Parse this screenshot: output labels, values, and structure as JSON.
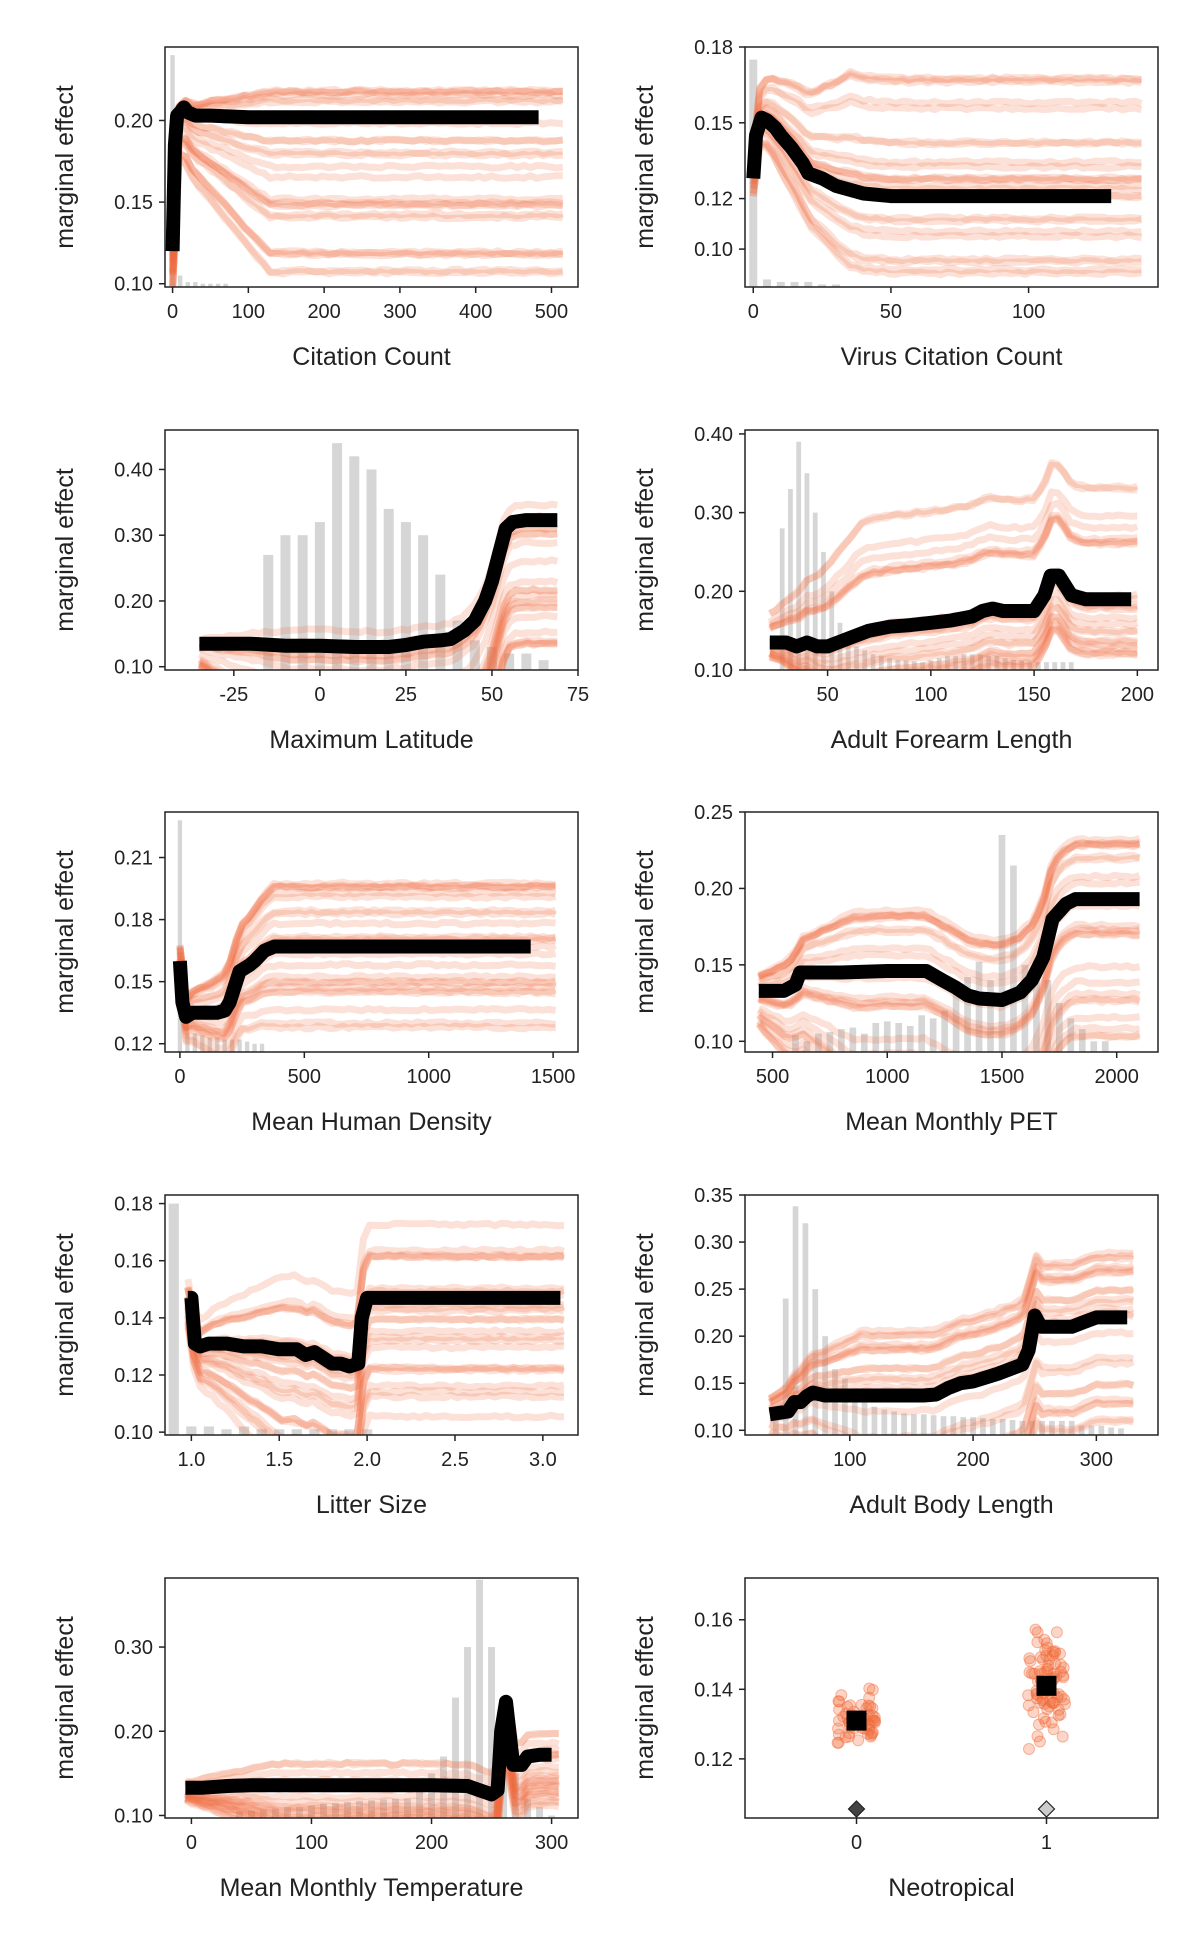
{
  "colors": {
    "ice": "#f26b3a",
    "pdp": "#000000",
    "hist": "#c8c8c8",
    "frame": "#222222"
  },
  "chart_data": [
    {
      "type": "line",
      "xlabel": "Citation Count",
      "ylabel": "marginal effect",
      "xlim": [
        -10,
        535
      ],
      "ylim": [
        0.098,
        0.245
      ],
      "xticks": [
        0,
        100,
        200,
        300,
        400,
        500
      ],
      "yticks": [
        0.1,
        0.15,
        0.2
      ],
      "ytick_labels": [
        "0.10",
        "0.15",
        "0.20"
      ],
      "pdp": {
        "x": [
          0,
          3,
          6,
          10,
          15,
          20,
          30,
          50,
          100,
          200,
          300,
          400,
          483
        ],
        "y": [
          0.12,
          0.185,
          0.203,
          0.205,
          0.208,
          0.205,
          0.203,
          0.203,
          0.202,
          0.202,
          0.202,
          0.202,
          0.202
        ]
      },
      "ice": {
        "x_end": 515,
        "ymin": 0.105,
        "ymax": 0.235
      },
      "hist": {
        "x": [
          0,
          10,
          20,
          30,
          40,
          50,
          60,
          70
        ],
        "y": [
          0.24,
          0.105,
          0.101,
          0.101,
          0.1,
          0.1,
          0.1,
          0.1
        ]
      }
    },
    {
      "type": "line",
      "xlabel": "Virus Citation Count",
      "ylabel": "marginal effect",
      "xlim": [
        -3,
        147
      ],
      "ylim": [
        0.085,
        0.18
      ],
      "xticks": [
        0,
        50,
        100
      ],
      "yticks": [
        0.1,
        0.12,
        0.15,
        0.18
      ],
      "ytick_labels": [
        "0.10",
        "0.12",
        "0.15",
        "0.18"
      ],
      "pdp": {
        "x": [
          0,
          1,
          3,
          5,
          8,
          10,
          14,
          18,
          20,
          25,
          30,
          40,
          50,
          60,
          80,
          100,
          130
        ],
        "y": [
          0.128,
          0.145,
          0.152,
          0.151,
          0.148,
          0.145,
          0.14,
          0.134,
          0.13,
          0.128,
          0.125,
          0.122,
          0.121,
          0.121,
          0.121,
          0.121,
          0.121
        ]
      },
      "ice": {
        "x_end": 141,
        "ymin": 0.088,
        "ymax": 0.168
      },
      "hist": {
        "x": [
          0,
          5,
          10,
          15,
          20,
          25,
          30
        ],
        "y": [
          0.175,
          0.088,
          0.087,
          0.087,
          0.087,
          0.086,
          0.086
        ]
      }
    },
    {
      "type": "line",
      "xlabel": "Maximum Latitude",
      "ylabel": "marginal effect",
      "xlim": [
        -45,
        75
      ],
      "ylim": [
        0.095,
        0.46
      ],
      "xticks": [
        -25,
        0,
        25,
        50,
        75
      ],
      "yticks": [
        0.1,
        0.2,
        0.3,
        0.4
      ],
      "ytick_labels": [
        "0.10",
        "0.20",
        "0.30",
        "0.40"
      ],
      "pdp": {
        "x": [
          -35,
          -20,
          -10,
          0,
          10,
          20,
          25,
          30,
          35,
          38,
          42,
          45,
          48,
          50,
          52,
          54,
          56,
          60,
          65,
          69
        ],
        "y": [
          0.135,
          0.135,
          0.132,
          0.132,
          0.13,
          0.13,
          0.133,
          0.138,
          0.14,
          0.142,
          0.155,
          0.17,
          0.2,
          0.23,
          0.27,
          0.31,
          0.32,
          0.323,
          0.323,
          0.323
        ]
      },
      "ice": {
        "x_end": 69,
        "ymin": 0.12,
        "ymax": 0.35
      },
      "hist": {
        "x": [
          -15,
          -10,
          -5,
          0,
          5,
          10,
          15,
          20,
          25,
          30,
          35,
          40,
          45,
          50,
          55,
          60,
          65
        ],
        "y": [
          0.27,
          0.3,
          0.3,
          0.32,
          0.44,
          0.42,
          0.4,
          0.34,
          0.32,
          0.3,
          0.24,
          0.17,
          0.14,
          0.13,
          0.12,
          0.12,
          0.11
        ]
      }
    },
    {
      "type": "line",
      "xlabel": "Adult Forearm Length",
      "ylabel": "marginal effect",
      "xlim": [
        10,
        210
      ],
      "ylim": [
        0.1,
        0.405
      ],
      "xticks": [
        50,
        100,
        150,
        200
      ],
      "yticks": [
        0.1,
        0.2,
        0.3,
        0.4
      ],
      "ytick_labels": [
        "0.10",
        "0.20",
        "0.30",
        "0.40"
      ],
      "pdp": {
        "x": [
          22,
          30,
          35,
          40,
          45,
          50,
          55,
          60,
          70,
          80,
          90,
          100,
          110,
          120,
          125,
          130,
          135,
          140,
          145,
          150,
          155,
          158,
          162,
          168,
          175,
          185,
          197
        ],
        "y": [
          0.135,
          0.135,
          0.13,
          0.135,
          0.13,
          0.13,
          0.135,
          0.14,
          0.15,
          0.155,
          0.157,
          0.16,
          0.163,
          0.168,
          0.175,
          0.178,
          0.175,
          0.175,
          0.175,
          0.175,
          0.195,
          0.22,
          0.22,
          0.195,
          0.19,
          0.19,
          0.19
        ]
      },
      "ice": {
        "x_end": 200,
        "ymin": 0.11,
        "ymax": 0.34
      },
      "hist": {
        "x": [
          28,
          32,
          36,
          40,
          44,
          48,
          52,
          56,
          60,
          64,
          68,
          72,
          76,
          80,
          84,
          88,
          92,
          96,
          100,
          104,
          108,
          112,
          116,
          120,
          124,
          128,
          132,
          136,
          140,
          144,
          148,
          152,
          156,
          160,
          164,
          168
        ],
        "y": [
          0.28,
          0.33,
          0.39,
          0.35,
          0.3,
          0.25,
          0.2,
          0.16,
          0.14,
          0.13,
          0.125,
          0.12,
          0.118,
          0.115,
          0.113,
          0.112,
          0.111,
          0.11,
          0.112,
          0.115,
          0.118,
          0.118,
          0.12,
          0.12,
          0.12,
          0.118,
          0.118,
          0.115,
          0.113,
          0.112,
          0.111,
          0.11,
          0.11,
          0.11,
          0.11,
          0.11
        ]
      }
    },
    {
      "type": "line",
      "xlabel": "Mean Human Density",
      "ylabel": "marginal effect",
      "xlim": [
        -60,
        1600
      ],
      "ylim": [
        0.116,
        0.232
      ],
      "xticks": [
        0,
        500,
        1000,
        1500
      ],
      "yticks": [
        0.12,
        0.15,
        0.18,
        0.21
      ],
      "ytick_labels": [
        "0.12",
        "0.15",
        "0.18",
        "0.21"
      ],
      "pdp": {
        "x": [
          0,
          10,
          25,
          50,
          100,
          150,
          180,
          200,
          240,
          280,
          300,
          340,
          380,
          400,
          600,
          1000,
          1410
        ],
        "y": [
          0.16,
          0.14,
          0.133,
          0.135,
          0.135,
          0.135,
          0.136,
          0.14,
          0.155,
          0.158,
          0.16,
          0.165,
          0.167,
          0.167,
          0.167,
          0.167,
          0.167
        ]
      },
      "ice": {
        "x_end": 1510,
        "ymin": 0.125,
        "ymax": 0.2
      },
      "hist": {
        "x": [
          0,
          30,
          60,
          90,
          120,
          150,
          180,
          210,
          240,
          270,
          300,
          330
        ],
        "y": [
          0.228,
          0.125,
          0.125,
          0.124,
          0.123,
          0.123,
          0.122,
          0.122,
          0.122,
          0.121,
          0.12,
          0.12
        ]
      }
    },
    {
      "type": "line",
      "xlabel": "Mean Monthly PET",
      "ylabel": "marginal effect",
      "xlim": [
        380,
        2180
      ],
      "ylim": [
        0.093,
        0.25
      ],
      "xticks": [
        500,
        1000,
        1500,
        2000
      ],
      "yticks": [
        0.1,
        0.15,
        0.2,
        0.25
      ],
      "ytick_labels": [
        "0.10",
        "0.15",
        "0.20",
        "0.25"
      ],
      "pdp": {
        "x": [
          440,
          550,
          600,
          620,
          660,
          800,
          1000,
          1100,
          1170,
          1240,
          1300,
          1350,
          1400,
          1500,
          1580,
          1630,
          1680,
          1720,
          1780,
          1820,
          1900,
          2100
        ],
        "y": [
          0.133,
          0.133,
          0.137,
          0.145,
          0.145,
          0.145,
          0.146,
          0.146,
          0.146,
          0.14,
          0.135,
          0.13,
          0.128,
          0.127,
          0.132,
          0.14,
          0.155,
          0.18,
          0.19,
          0.193,
          0.193,
          0.193
        ]
      },
      "ice": {
        "x_end": 2100,
        "ymin": 0.1,
        "ymax": 0.24
      },
      "hist": {
        "x": [
          600,
          650,
          700,
          750,
          800,
          850,
          900,
          950,
          1000,
          1050,
          1100,
          1150,
          1200,
          1250,
          1300,
          1350,
          1400,
          1450,
          1500,
          1550,
          1600,
          1650,
          1700,
          1750,
          1800,
          1850,
          1900,
          1950
        ],
        "y": [
          0.104,
          0.1,
          0.105,
          0.106,
          0.108,
          0.109,
          0.105,
          0.112,
          0.113,
          0.112,
          0.11,
          0.117,
          0.115,
          0.12,
          0.135,
          0.142,
          0.152,
          0.14,
          0.235,
          0.215,
          0.15,
          0.146,
          0.14,
          0.125,
          0.115,
          0.108,
          0.1,
          0.1
        ]
      }
    },
    {
      "type": "line",
      "xlabel": "Litter Size",
      "ylabel": "marginal effect",
      "xlim": [
        0.85,
        3.2
      ],
      "ylim": [
        0.099,
        0.183
      ],
      "xticks": [
        1.0,
        1.5,
        2.0,
        2.5,
        3.0
      ],
      "xtick_labels": [
        "1.0",
        "1.5",
        "2.0",
        "2.5",
        "3.0"
      ],
      "yticks": [
        0.1,
        0.12,
        0.14,
        0.16,
        0.18
      ],
      "ytick_labels": [
        "0.10",
        "0.12",
        "0.14",
        "0.16",
        "0.18"
      ],
      "pdp": {
        "x": [
          0.98,
          1.0,
          1.02,
          1.05,
          1.1,
          1.2,
          1.3,
          1.4,
          1.5,
          1.6,
          1.65,
          1.7,
          1.75,
          1.8,
          1.85,
          1.9,
          1.95,
          1.97,
          2.0,
          2.05,
          2.5,
          3.1
        ],
        "y": [
          0.147,
          0.147,
          0.131,
          0.13,
          0.131,
          0.131,
          0.13,
          0.13,
          0.129,
          0.129,
          0.127,
          0.128,
          0.126,
          0.124,
          0.124,
          0.123,
          0.124,
          0.14,
          0.147,
          0.147,
          0.147,
          0.147
        ]
      },
      "ice": {
        "x_end": 3.12,
        "ymin": 0.105,
        "ymax": 0.18
      },
      "hist": {
        "x": [
          0.9,
          1.0,
          1.1,
          1.2,
          1.3,
          1.4,
          1.5,
          1.6,
          1.7,
          1.8,
          1.9,
          2.0
        ],
        "y": [
          0.18,
          0.102,
          0.102,
          0.101,
          0.102,
          0.101,
          0.101,
          0.101,
          0.101,
          0.101,
          0.101,
          0.101
        ]
      }
    },
    {
      "type": "line",
      "xlabel": "Adult Body Length",
      "ylabel": "marginal effect",
      "xlim": [
        15,
        350
      ],
      "ylim": [
        0.095,
        0.35
      ],
      "xticks": [
        100,
        200,
        300
      ],
      "yticks": [
        0.1,
        0.15,
        0.2,
        0.25,
        0.3,
        0.35
      ],
      "ytick_labels": [
        "0.10",
        "0.15",
        "0.20",
        "0.25",
        "0.30",
        "0.35"
      ],
      "pdp": {
        "x": [
          35,
          50,
          55,
          60,
          65,
          70,
          80,
          100,
          120,
          140,
          160,
          170,
          180,
          190,
          200,
          220,
          240,
          245,
          250,
          255,
          260,
          270,
          280,
          290,
          300,
          325
        ],
        "y": [
          0.117,
          0.12,
          0.13,
          0.13,
          0.136,
          0.14,
          0.137,
          0.137,
          0.137,
          0.137,
          0.137,
          0.138,
          0.145,
          0.15,
          0.152,
          0.16,
          0.17,
          0.185,
          0.222,
          0.21,
          0.21,
          0.21,
          0.21,
          0.215,
          0.22,
          0.22
        ]
      },
      "ice": {
        "x_end": 330,
        "ymin": 0.1,
        "ymax": 0.29
      },
      "hist": {
        "x": [
          40,
          48,
          56,
          64,
          72,
          80,
          88,
          96,
          104,
          112,
          120,
          128,
          136,
          144,
          152,
          160,
          168,
          176,
          184,
          192,
          200,
          208,
          216,
          224,
          232,
          240,
          248,
          256,
          264,
          272,
          280,
          288,
          296,
          304,
          312,
          320
        ],
        "y": [
          0.12,
          0.24,
          0.338,
          0.32,
          0.25,
          0.2,
          0.165,
          0.155,
          0.14,
          0.13,
          0.125,
          0.122,
          0.12,
          0.118,
          0.117,
          0.117,
          0.116,
          0.115,
          0.115,
          0.114,
          0.114,
          0.113,
          0.112,
          0.112,
          0.111,
          0.11,
          0.11,
          0.11,
          0.11,
          0.11,
          0.11,
          0.105,
          0.105,
          0.105,
          0.103,
          0.102
        ]
      }
    },
    {
      "type": "line",
      "xlabel": "Mean Monthly Temperature",
      "ylabel": "marginal effect",
      "xlim": [
        -22,
        322
      ],
      "ylim": [
        0.097,
        0.382
      ],
      "xticks": [
        0,
        100,
        200,
        300
      ],
      "yticks": [
        0.1,
        0.2,
        0.3
      ],
      "ytick_labels": [
        "0.10",
        "0.20",
        "0.30"
      ],
      "pdp": {
        "x": [
          -5,
          10,
          30,
          50,
          100,
          150,
          200,
          230,
          240,
          250,
          255,
          258,
          262,
          268,
          275,
          280,
          290,
          300
        ],
        "y": [
          0.133,
          0.133,
          0.135,
          0.136,
          0.136,
          0.136,
          0.136,
          0.135,
          0.13,
          0.125,
          0.13,
          0.2,
          0.235,
          0.16,
          0.16,
          0.17,
          0.172,
          0.172
        ]
      },
      "ice": {
        "x_end": 306,
        "ymin": 0.105,
        "ymax": 0.2
      },
      "hist": {
        "x": [
          40,
          50,
          60,
          70,
          80,
          90,
          100,
          110,
          120,
          130,
          140,
          150,
          160,
          170,
          180,
          190,
          200,
          210,
          220,
          230,
          240,
          250,
          260,
          270,
          280,
          290,
          300
        ],
        "y": [
          0.105,
          0.106,
          0.107,
          0.108,
          0.11,
          0.11,
          0.112,
          0.114,
          0.115,
          0.116,
          0.117,
          0.118,
          0.119,
          0.12,
          0.12,
          0.14,
          0.15,
          0.17,
          0.24,
          0.3,
          0.38,
          0.3,
          0.2,
          0.15,
          0.12,
          0.11,
          0.1
        ]
      }
    },
    {
      "type": "scatter",
      "xlabel": "Neotropical",
      "ylabel": "marginal effect",
      "categories": [
        "0",
        "1"
      ],
      "ylim": [
        0.103,
        0.172
      ],
      "yticks": [
        0.12,
        0.14,
        0.16
      ],
      "ytick_labels": [
        "0.12",
        "0.14",
        "0.16"
      ],
      "means": [
        0.131,
        0.141
      ],
      "spread": [
        {
          "min": 0.12,
          "max": 0.143
        },
        {
          "min": 0.118,
          "max": 0.164
        }
      ],
      "n_points": [
        60,
        80
      ]
    }
  ]
}
